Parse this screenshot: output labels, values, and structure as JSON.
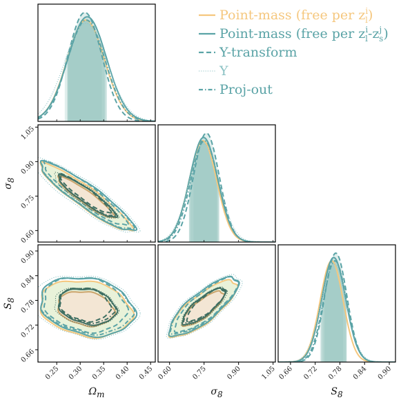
{
  "chart_data": {
    "type": "corner",
    "parameters": [
      "Ωm",
      "σ8",
      "S8"
    ],
    "axis_labels": {
      "Omega_m": {
        "base": "Ω",
        "sub": "m"
      },
      "sigma_8": {
        "base": "σ",
        "sub": "8"
      },
      "S_8": {
        "base": "S",
        "sub": "8"
      }
    },
    "ranges": {
      "Omega_m": [
        0.21,
        0.46
      ],
      "sigma_8": [
        0.55,
        1.06
      ],
      "S_8": [
        0.63,
        0.915
      ]
    },
    "ticks": {
      "Omega_m": [
        "0.25",
        "0.30",
        "0.35",
        "0.40",
        "0.45"
      ],
      "sigma_8": [
        "0.60",
        "0.75",
        "0.90",
        "1.05"
      ],
      "S_8": [
        "0.66",
        "0.72",
        "0.78",
        "0.84",
        "0.90"
      ]
    },
    "series": [
      {
        "name": "Point-mass (free per z_l^i)",
        "legend_text": "Point-mass (free per z",
        "legend_sup": "i",
        "legend_sub": "l",
        "legend_tail": ")",
        "color": "#f5c77e",
        "dash": "solid",
        "means": [
          0.312,
          0.745,
          0.76
        ],
        "sigmas": [
          0.04,
          0.06,
          0.028
        ],
        "rho_om_s8": -0.93,
        "rho_om_S8": -0.2,
        "rho_s8_S8": 0.8
      },
      {
        "name": "Point-mass (free per z_l^i-z_s^j)",
        "legend_text": "Point-mass (free per z",
        "legend_sup": "i",
        "legend_sub": "l",
        "legend_mid": "-z",
        "legend_sup2": "j",
        "legend_sub2": "s",
        "legend_tail": ")",
        "color": "#5aa3a6",
        "dash": "solid",
        "means": [
          0.315,
          0.748,
          0.765
        ],
        "sigmas": [
          0.041,
          0.061,
          0.029
        ],
        "rho_om_s8": -0.92,
        "rho_om_S8": -0.22,
        "rho_s8_S8": 0.8
      },
      {
        "name": "Y-transform",
        "legend_text": "Y-transform",
        "color": "#5aa3a6",
        "dash": "dashed",
        "means": [
          0.31,
          0.76,
          0.77
        ],
        "sigmas": [
          0.036,
          0.056,
          0.027
        ],
        "rho_om_s8": -0.93,
        "rho_om_S8": -0.18,
        "rho_s8_S8": 0.82
      },
      {
        "name": "Υ",
        "legend_text": "Υ",
        "color": "#8cc2c4",
        "dash": "dotted",
        "means": [
          0.312,
          0.75,
          0.765
        ],
        "sigmas": [
          0.045,
          0.066,
          0.031
        ],
        "rho_om_s8": -0.9,
        "rho_om_S8": -0.2,
        "rho_s8_S8": 0.78
      },
      {
        "name": "Proj-out",
        "legend_text": "Proj-out",
        "color": "#5aa3a6",
        "dash": "dashdot",
        "means": [
          0.313,
          0.752,
          0.768
        ],
        "sigmas": [
          0.04,
          0.06,
          0.028
        ],
        "rho_om_s8": -0.92,
        "rho_om_S8": -0.2,
        "rho_s8_S8": 0.8
      }
    ],
    "inner_contour_color": "#3f6f62",
    "inner_fill": "#f3e6d4",
    "outer_fill": "#e9f2d9",
    "band_fill": "#8fc1b9",
    "legend_placement": "top-right"
  }
}
